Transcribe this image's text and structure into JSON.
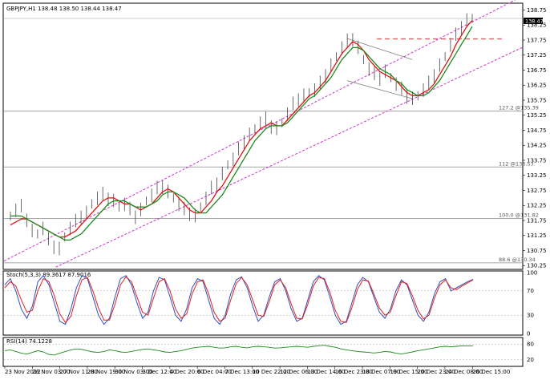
{
  "chart_data": {
    "type": "line",
    "header": "GBPJPY,H1  138.48 138.50 138.44 138.47",
    "price_axis": {
      "ticks": [
        "138.75",
        "138.25",
        "137.75",
        "137.25",
        "136.75",
        "136.25",
        "135.75",
        "135.25",
        "134.75",
        "134.25",
        "133.75",
        "133.25",
        "132.75",
        "132.25",
        "131.75",
        "131.25",
        "130.75",
        "130.25"
      ],
      "ylim": [
        130.15,
        138.95
      ],
      "current_price": "138.47"
    },
    "time_axis": {
      "labels": [
        "23 Nov 2012",
        "26 Nov 03:00",
        "27 Nov 11:00",
        "28 Nov 19:00",
        "30 Nov 03:00",
        "3 Dec 12:00",
        "4 Dec 20:00",
        "6 Dec 04:00",
        "7 Dec 13:00",
        "10 Dec 22:00",
        "12 Dec 06:00",
        "13 Dec 14:00",
        "16 Dec 23:00",
        "18 Dec 07:00",
        "19 Dec 15:00",
        "20 Dec 23:00",
        "24 Dec 08:00",
        "26 Dec 15:00"
      ]
    },
    "fib_levels": [
      {
        "label": "127.2 @135.39",
        "value": 135.39
      },
      {
        "label": "112 @133.53",
        "value": 133.53
      },
      {
        "label": "100.0 @131.82",
        "value": 131.82
      },
      {
        "label": "88.6 @130.34",
        "value": 130.34
      }
    ],
    "resistance_line": 137.79,
    "series": [
      {
        "values": [
          131.9,
          132.1,
          132.2,
          131.8,
          131.4,
          131.3,
          131.5,
          131.1,
          130.9,
          130.8,
          131.2,
          131.5,
          131.7,
          131.9,
          132.0,
          132.3,
          132.5,
          132.6,
          132.5,
          132.4,
          132.2,
          132.3,
          132.1,
          131.9,
          132.1,
          132.4,
          132.6,
          132.8,
          132.9,
          132.7,
          132.5,
          132.3,
          132.1,
          132.0,
          131.9,
          132.2,
          132.5,
          132.8,
          133.0,
          133.3,
          133.6,
          133.8,
          134.1,
          134.4,
          134.6,
          134.8,
          135.0,
          135.1,
          134.9,
          134.8,
          135.0,
          135.3,
          135.6,
          135.8,
          135.9,
          136.0,
          136.1,
          136.3,
          136.6,
          136.9,
          137.2,
          137.5,
          137.7,
          137.8,
          137.5,
          137.1,
          136.8,
          136.6,
          136.5,
          136.7,
          136.5,
          136.3,
          136.1,
          135.9,
          135.8,
          135.9,
          136.1,
          136.3,
          136.6,
          136.9,
          137.2,
          137.6,
          137.9,
          138.2,
          138.4,
          138.47
        ]
      },
      {
        "values": [
          131.6,
          131.7,
          131.8,
          131.8,
          131.7,
          131.6,
          131.5,
          131.4,
          131.3,
          131.2,
          131.2,
          131.3,
          131.4,
          131.6,
          131.8,
          132.0,
          132.2,
          132.4,
          132.5,
          132.5,
          132.4,
          132.3,
          132.3,
          132.2,
          132.1,
          132.2,
          132.3,
          132.5,
          132.7,
          132.8,
          132.7,
          132.5,
          132.3,
          132.1,
          132.0,
          132.0,
          132.2,
          132.4,
          132.7,
          132.9,
          133.2,
          133.5,
          133.8,
          134.1,
          134.4,
          134.6,
          134.8,
          134.9,
          135.0,
          134.9,
          134.9,
          135.1,
          135.3,
          135.5,
          135.7,
          135.9,
          136.0,
          136.2,
          136.4,
          136.7,
          137.0,
          137.3,
          137.5,
          137.7,
          137.6,
          137.4,
          137.1,
          136.9,
          136.7,
          136.6,
          136.5,
          136.4,
          136.2,
          136.0,
          135.9,
          135.9,
          136.0,
          136.1,
          136.3,
          136.6,
          136.9,
          137.2,
          137.6,
          137.9,
          138.2,
          138.4
        ]
      },
      {
        "values": [
          131.9,
          131.9,
          131.9,
          131.8,
          131.7,
          131.6,
          131.5,
          131.4,
          131.3,
          131.2,
          131.1,
          131.1,
          131.2,
          131.3,
          131.5,
          131.7,
          131.9,
          132.1,
          132.3,
          132.4,
          132.4,
          132.4,
          132.3,
          132.2,
          132.2,
          132.2,
          132.3,
          132.4,
          132.6,
          132.7,
          132.7,
          132.6,
          132.5,
          132.3,
          132.1,
          132.0,
          132.0,
          132.2,
          132.4,
          132.6,
          132.9,
          133.2,
          133.5,
          133.8,
          134.1,
          134.4,
          134.6,
          134.8,
          134.9,
          134.9,
          134.9,
          135.0,
          135.2,
          135.4,
          135.6,
          135.8,
          135.9,
          136.1,
          136.3,
          136.5,
          136.8,
          137.1,
          137.3,
          137.5,
          137.5,
          137.4,
          137.2,
          137.0,
          136.8,
          136.7,
          136.6,
          136.4,
          136.3,
          136.1,
          136.0,
          135.9,
          135.9,
          136.0,
          136.2,
          136.4,
          136.7,
          137.0,
          137.3,
          137.6,
          137.9,
          138.2
        ]
      }
    ],
    "channel": {
      "upper": {
        "x0": 0.0,
        "y0": 130.4,
        "x1": 1.0,
        "y1": 139.2
      },
      "lower": {
        "x0": 0.1,
        "y0": 130.2,
        "x1": 1.0,
        "y1": 137.5
      }
    },
    "stoch": {
      "label": "Stoch(5,3,3) 89.3617 87.9016",
      "ticks": [
        "100",
        "70",
        "30",
        "0"
      ],
      "ylim": [
        0,
        100
      ],
      "main": [
        80,
        90,
        70,
        40,
        25,
        45,
        85,
        95,
        80,
        50,
        20,
        15,
        40,
        75,
        95,
        90,
        60,
        30,
        15,
        25,
        60,
        90,
        95,
        80,
        50,
        25,
        35,
        70,
        92,
        88,
        60,
        30,
        20,
        40,
        75,
        90,
        85,
        55,
        25,
        15,
        30,
        65,
        88,
        93,
        75,
        45,
        20,
        30,
        60,
        85,
        90,
        70,
        40,
        20,
        25,
        55,
        85,
        95,
        88,
        60,
        30,
        15,
        20,
        50,
        80,
        92,
        85,
        60,
        35,
        25,
        40,
        70,
        88,
        80,
        55,
        30,
        20,
        35,
        65,
        85,
        90,
        70,
        75,
        80,
        85,
        89
      ],
      "signal": [
        75,
        85,
        78,
        55,
        35,
        38,
        70,
        90,
        85,
        62,
        32,
        18,
        28,
        62,
        88,
        92,
        70,
        42,
        22,
        22,
        48,
        80,
        93,
        85,
        60,
        35,
        30,
        58,
        85,
        90,
        70,
        40,
        25,
        32,
        65,
        85,
        88,
        65,
        35,
        20,
        25,
        55,
        82,
        92,
        80,
        55,
        30,
        28,
        52,
        80,
        88,
        75,
        48,
        25,
        24,
        48,
        78,
        92,
        90,
        68,
        38,
        20,
        18,
        42,
        72,
        88,
        86,
        65,
        42,
        30,
        35,
        62,
        85,
        82,
        62,
        38,
        24,
        30,
        58,
        80,
        88,
        75,
        72,
        78,
        83,
        88
      ]
    },
    "rsi": {
      "label": "RSI(14) 74.1228",
      "ticks": [
        "80",
        "20"
      ],
      "ylim": [
        0,
        100
      ],
      "values": [
        55,
        58,
        52,
        45,
        42,
        48,
        55,
        50,
        40,
        38,
        45,
        52,
        58,
        62,
        60,
        55,
        50,
        48,
        52,
        58,
        55,
        50,
        48,
        52,
        56,
        60,
        62,
        58,
        55,
        50,
        48,
        52,
        55,
        60,
        65,
        68,
        70,
        72,
        68,
        65,
        66,
        70,
        72,
        68,
        66,
        70,
        72,
        70,
        68,
        65,
        66,
        68,
        70,
        72,
        70,
        68,
        72,
        74,
        76,
        72,
        68,
        62,
        58,
        55,
        52,
        50,
        48,
        46,
        48,
        52,
        50,
        45,
        42,
        46,
        50,
        55,
        58,
        62,
        66,
        70,
        72,
        70,
        72,
        74,
        73,
        74
      ]
    }
  }
}
